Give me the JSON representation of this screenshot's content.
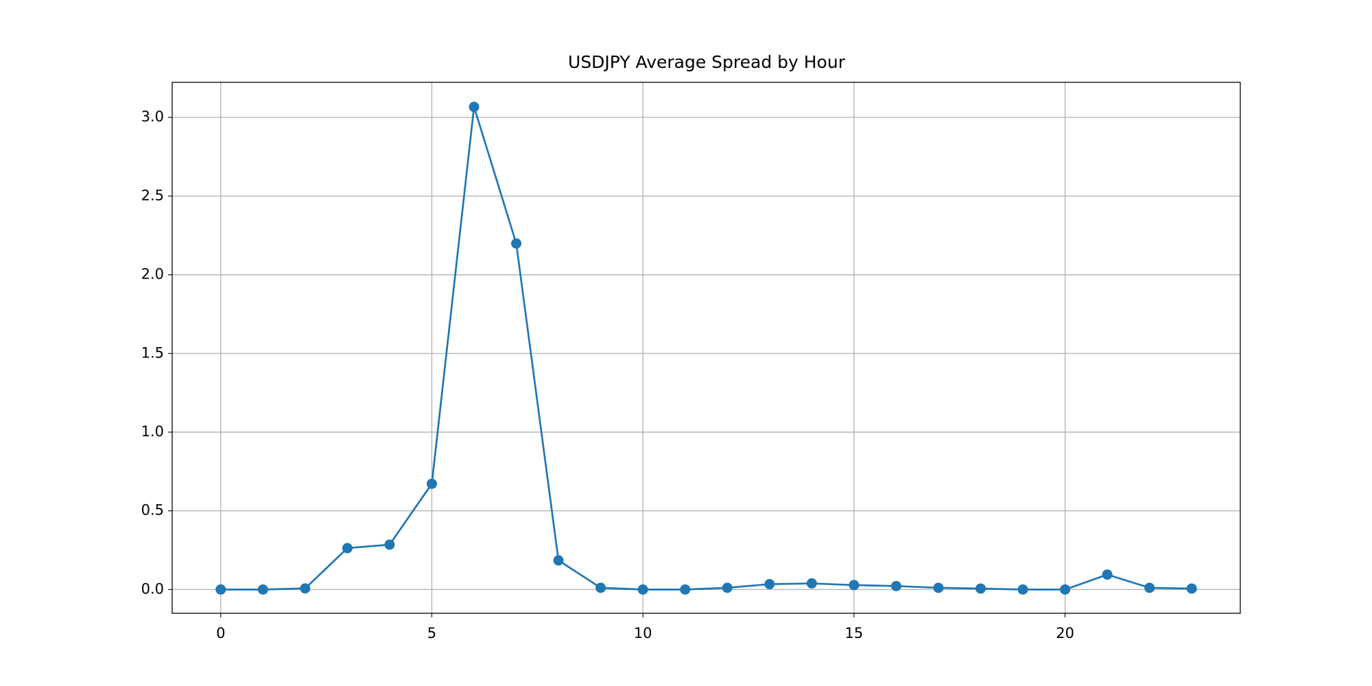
{
  "chart_data": {
    "type": "line",
    "title": "USDJPY Average Spread by Hour",
    "x": [
      0,
      1,
      2,
      3,
      4,
      5,
      6,
      7,
      8,
      9,
      10,
      11,
      12,
      13,
      14,
      15,
      16,
      17,
      18,
      19,
      20,
      21,
      22,
      23
    ],
    "series": [
      {
        "color": "#1f77b4",
        "values": [
          0.0,
          0.0,
          0.007,
          0.263,
          0.285,
          0.672,
          3.067,
          2.199,
          0.185,
          0.011,
          0.0,
          0.0,
          0.011,
          0.034,
          0.039,
          0.028,
          0.022,
          0.011,
          0.006,
          0.0,
          0.0,
          0.095,
          0.011,
          0.006
        ]
      }
    ],
    "xlim": [
      -1.15,
      24.15
    ],
    "xticks": [
      0,
      5,
      10,
      15,
      20
    ],
    "ylim": [
      -0.151,
      3.223
    ],
    "yticks": [
      {
        "value": 0,
        "label": "0.0"
      },
      0.5,
      {
        "value": 1,
        "label": "1.0"
      },
      1.5,
      {
        "value": 2,
        "label": "2.0"
      },
      2.5,
      {
        "value": 3,
        "label": "3.0"
      }
    ],
    "grid": true
  }
}
